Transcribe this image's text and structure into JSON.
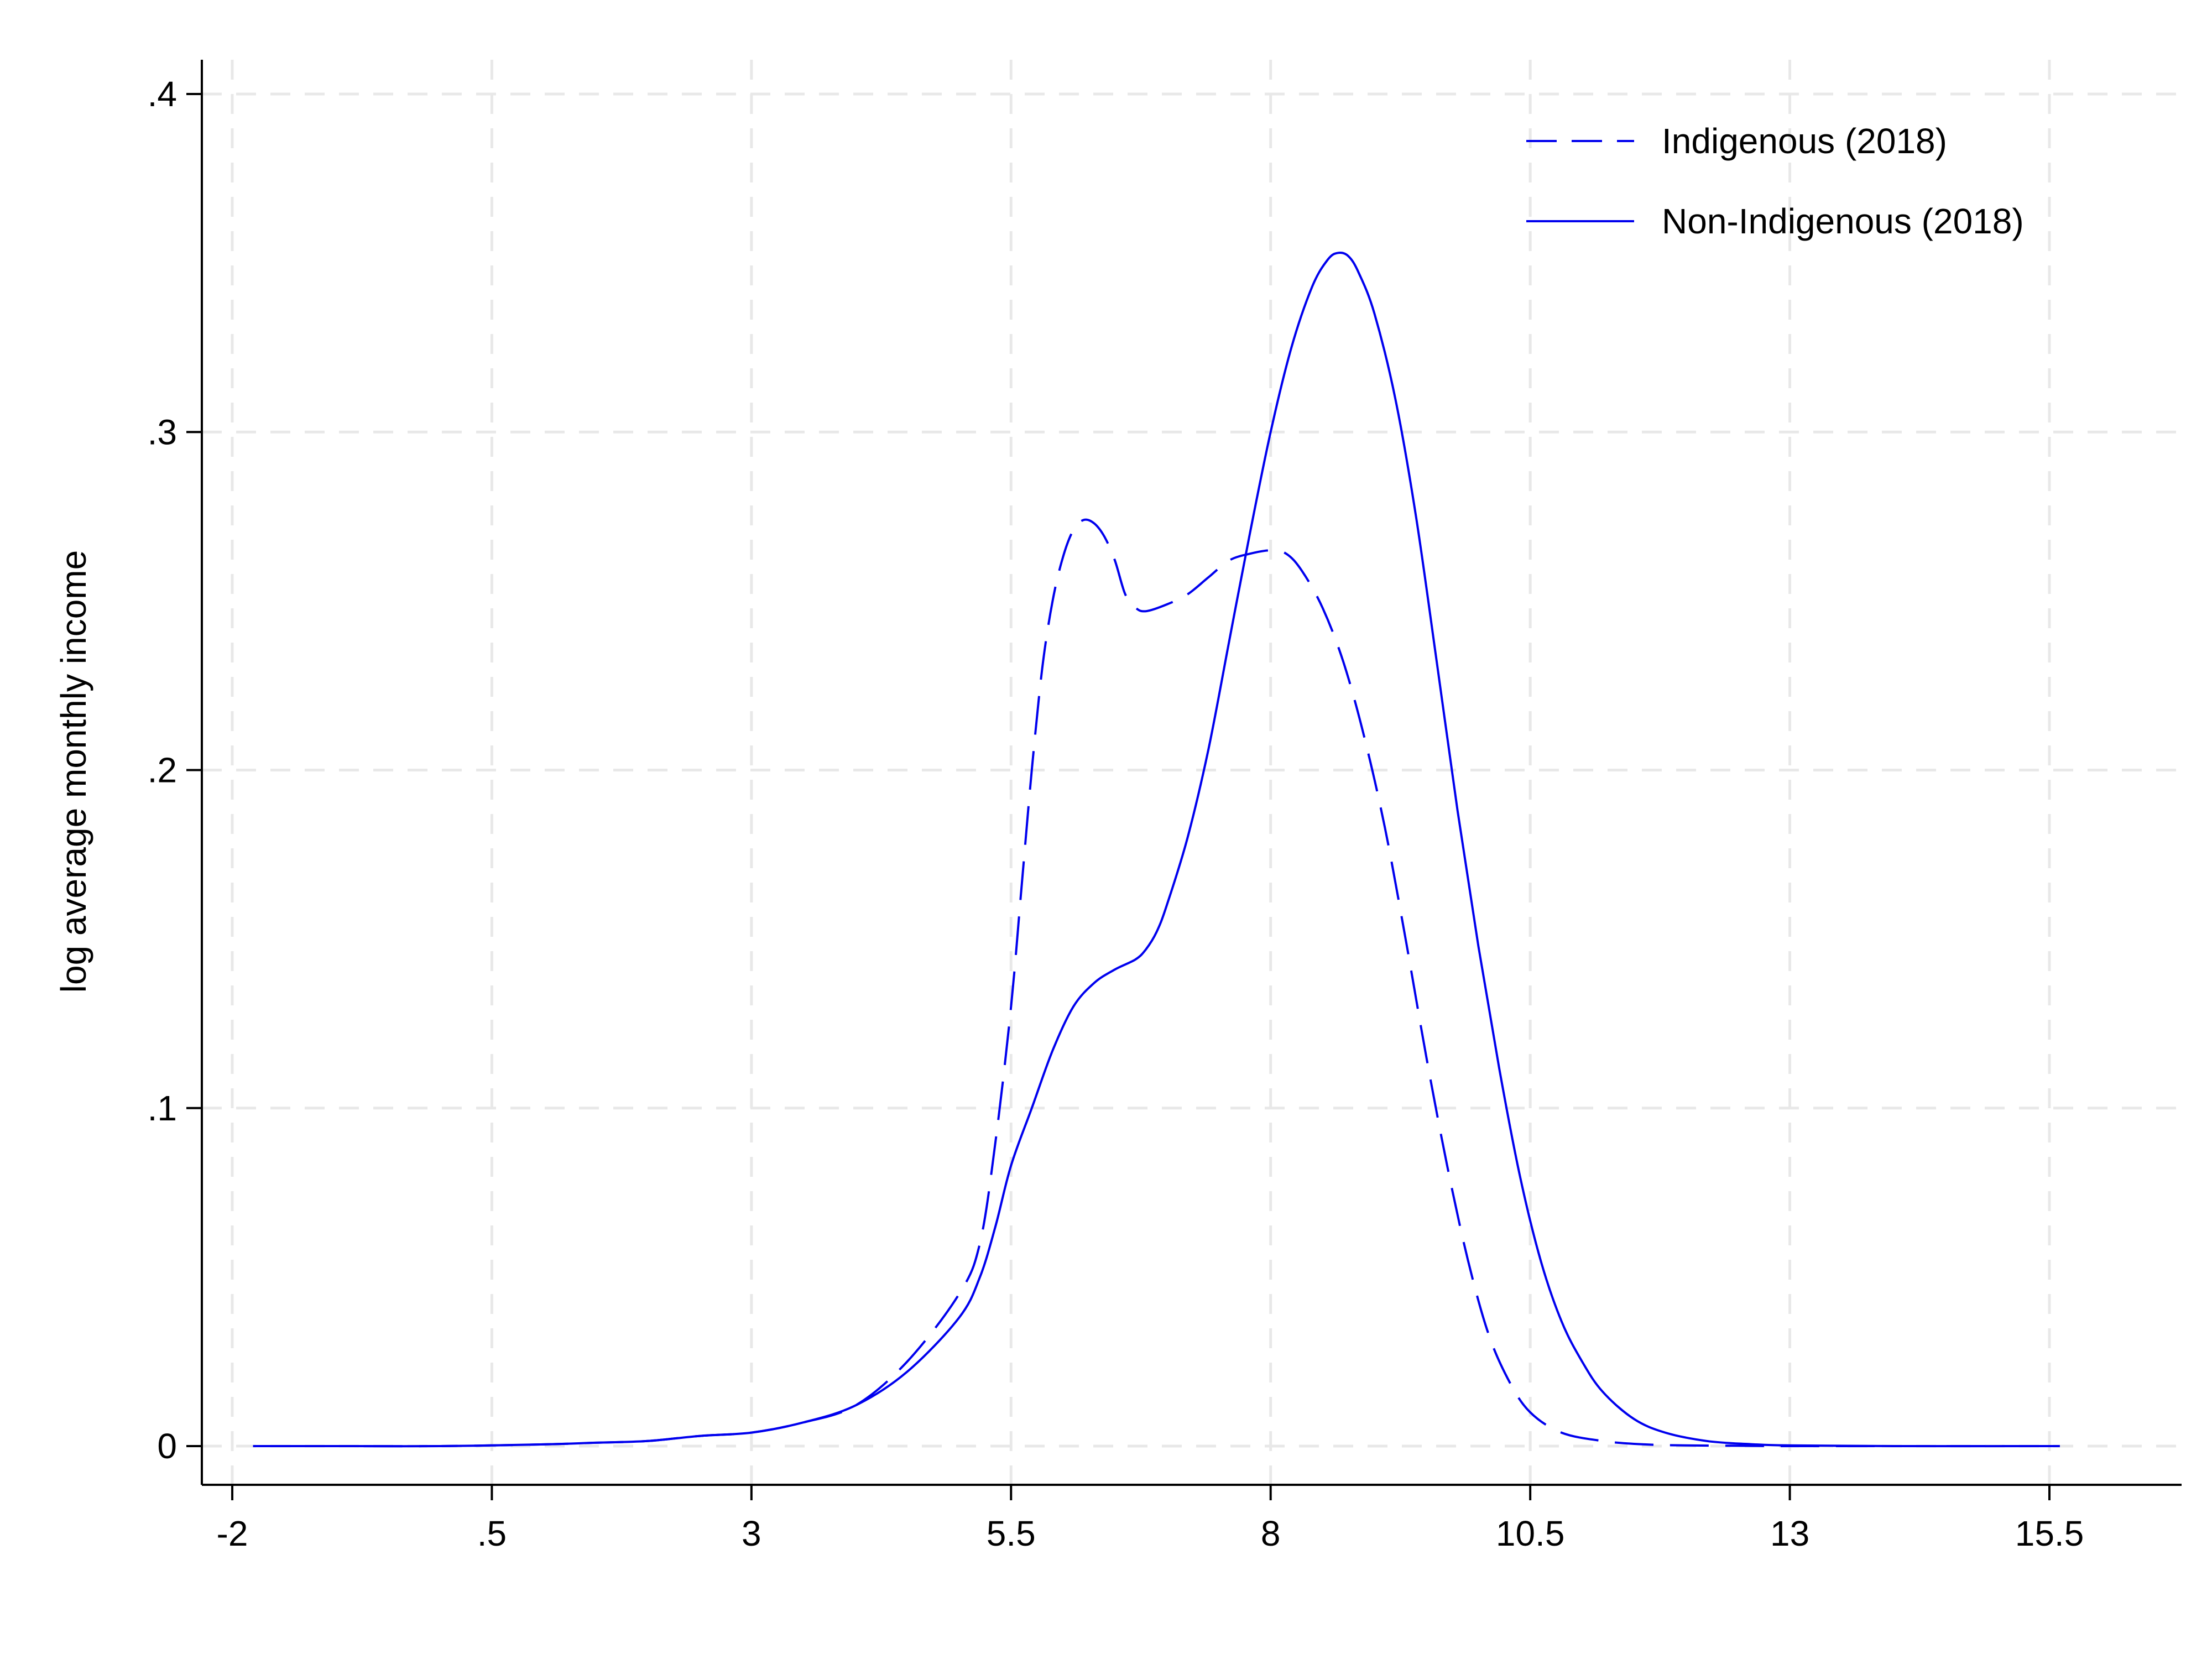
{
  "chart_data": {
    "type": "line",
    "title": "",
    "xlabel": "",
    "ylabel": "log average monthly income",
    "xlim": [
      -2.1,
      16.9
    ],
    "ylim": [
      -0.01,
      0.41
    ],
    "x_ticks": [
      -2,
      0.5,
      3,
      5.5,
      8,
      10.5,
      13,
      15.5
    ],
    "x_tick_labels": [
      "-2",
      ".5",
      "3",
      "5.5",
      "8",
      "10.5",
      "13",
      "15.5"
    ],
    "y_ticks": [
      0,
      0.1,
      0.2,
      0.3,
      0.4
    ],
    "y_tick_labels": [
      "0",
      ".1",
      ".2",
      ".3",
      ".4"
    ],
    "grid": true,
    "legend_position": "top-right",
    "series": [
      {
        "name": "Indigenous (2018)",
        "color": "#0000ee",
        "dash": "dashed",
        "points": [
          [
            -1.8,
            0
          ],
          [
            -1,
            0
          ],
          [
            0,
            0
          ],
          [
            1,
            0.0005
          ],
          [
            1.5,
            0.001
          ],
          [
            2,
            0.0015
          ],
          [
            2.5,
            0.003
          ],
          [
            3,
            0.004
          ],
          [
            3.5,
            0.007
          ],
          [
            4,
            0.012
          ],
          [
            4.5,
            0.025
          ],
          [
            5,
            0.045
          ],
          [
            5.2,
            0.06
          ],
          [
            5.35,
            0.09
          ],
          [
            5.5,
            0.13
          ],
          [
            5.6,
            0.165
          ],
          [
            5.7,
            0.2
          ],
          [
            5.8,
            0.23
          ],
          [
            5.9,
            0.25
          ],
          [
            6,
            0.263
          ],
          [
            6.1,
            0.271
          ],
          [
            6.2,
            0.274
          ],
          [
            6.3,
            0.273
          ],
          [
            6.4,
            0.269
          ],
          [
            6.5,
            0.262
          ],
          [
            6.6,
            0.252
          ],
          [
            6.7,
            0.248
          ],
          [
            6.8,
            0.247
          ],
          [
            7,
            0.249
          ],
          [
            7.2,
            0.252
          ],
          [
            7.4,
            0.257
          ],
          [
            7.6,
            0.262
          ],
          [
            7.8,
            0.264
          ],
          [
            8,
            0.265
          ],
          [
            8.15,
            0.264
          ],
          [
            8.3,
            0.259
          ],
          [
            8.5,
            0.248
          ],
          [
            8.7,
            0.232
          ],
          [
            8.9,
            0.21
          ],
          [
            9.1,
            0.183
          ],
          [
            9.3,
            0.15
          ],
          [
            9.5,
            0.115
          ],
          [
            9.7,
            0.083
          ],
          [
            9.9,
            0.055
          ],
          [
            10.1,
            0.033
          ],
          [
            10.3,
            0.019
          ],
          [
            10.5,
            0.01
          ],
          [
            10.8,
            0.004
          ],
          [
            11.2,
            0.0015
          ],
          [
            11.6,
            0.0005
          ],
          [
            12,
            0.0002
          ],
          [
            12.5,
            0.0001
          ],
          [
            13,
            0
          ],
          [
            14,
            0
          ],
          [
            15.6,
            0
          ]
        ]
      },
      {
        "name": "Non-Indigenous (2018)",
        "color": "#0000ee",
        "dash": "solid",
        "points": [
          [
            -1.8,
            0
          ],
          [
            -1,
            0
          ],
          [
            0,
            0
          ],
          [
            1,
            0.0005
          ],
          [
            1.5,
            0.001
          ],
          [
            2,
            0.0015
          ],
          [
            2.5,
            0.003
          ],
          [
            3,
            0.004
          ],
          [
            3.5,
            0.007
          ],
          [
            4,
            0.012
          ],
          [
            4.5,
            0.022
          ],
          [
            5,
            0.038
          ],
          [
            5.2,
            0.05
          ],
          [
            5.35,
            0.065
          ],
          [
            5.5,
            0.083
          ],
          [
            5.7,
            0.1
          ],
          [
            5.9,
            0.117
          ],
          [
            6.1,
            0.13
          ],
          [
            6.3,
            0.137
          ],
          [
            6.5,
            0.141
          ],
          [
            6.7,
            0.144
          ],
          [
            6.8,
            0.147
          ],
          [
            6.9,
            0.152
          ],
          [
            7,
            0.16
          ],
          [
            7.2,
            0.18
          ],
          [
            7.4,
            0.206
          ],
          [
            7.6,
            0.238
          ],
          [
            7.8,
            0.27
          ],
          [
            8,
            0.3
          ],
          [
            8.2,
            0.325
          ],
          [
            8.4,
            0.343
          ],
          [
            8.55,
            0.351
          ],
          [
            8.65,
            0.353
          ],
          [
            8.75,
            0.352
          ],
          [
            8.85,
            0.347
          ],
          [
            9,
            0.335
          ],
          [
            9.2,
            0.31
          ],
          [
            9.4,
            0.275
          ],
          [
            9.6,
            0.232
          ],
          [
            9.8,
            0.188
          ],
          [
            10,
            0.148
          ],
          [
            10.2,
            0.112
          ],
          [
            10.4,
            0.08
          ],
          [
            10.6,
            0.055
          ],
          [
            10.8,
            0.037
          ],
          [
            11,
            0.025
          ],
          [
            11.2,
            0.016
          ],
          [
            11.5,
            0.008
          ],
          [
            11.8,
            0.004
          ],
          [
            12.2,
            0.0015
          ],
          [
            12.6,
            0.0006
          ],
          [
            13,
            0.0002
          ],
          [
            14,
            0
          ],
          [
            15.6,
            0
          ]
        ]
      }
    ]
  }
}
